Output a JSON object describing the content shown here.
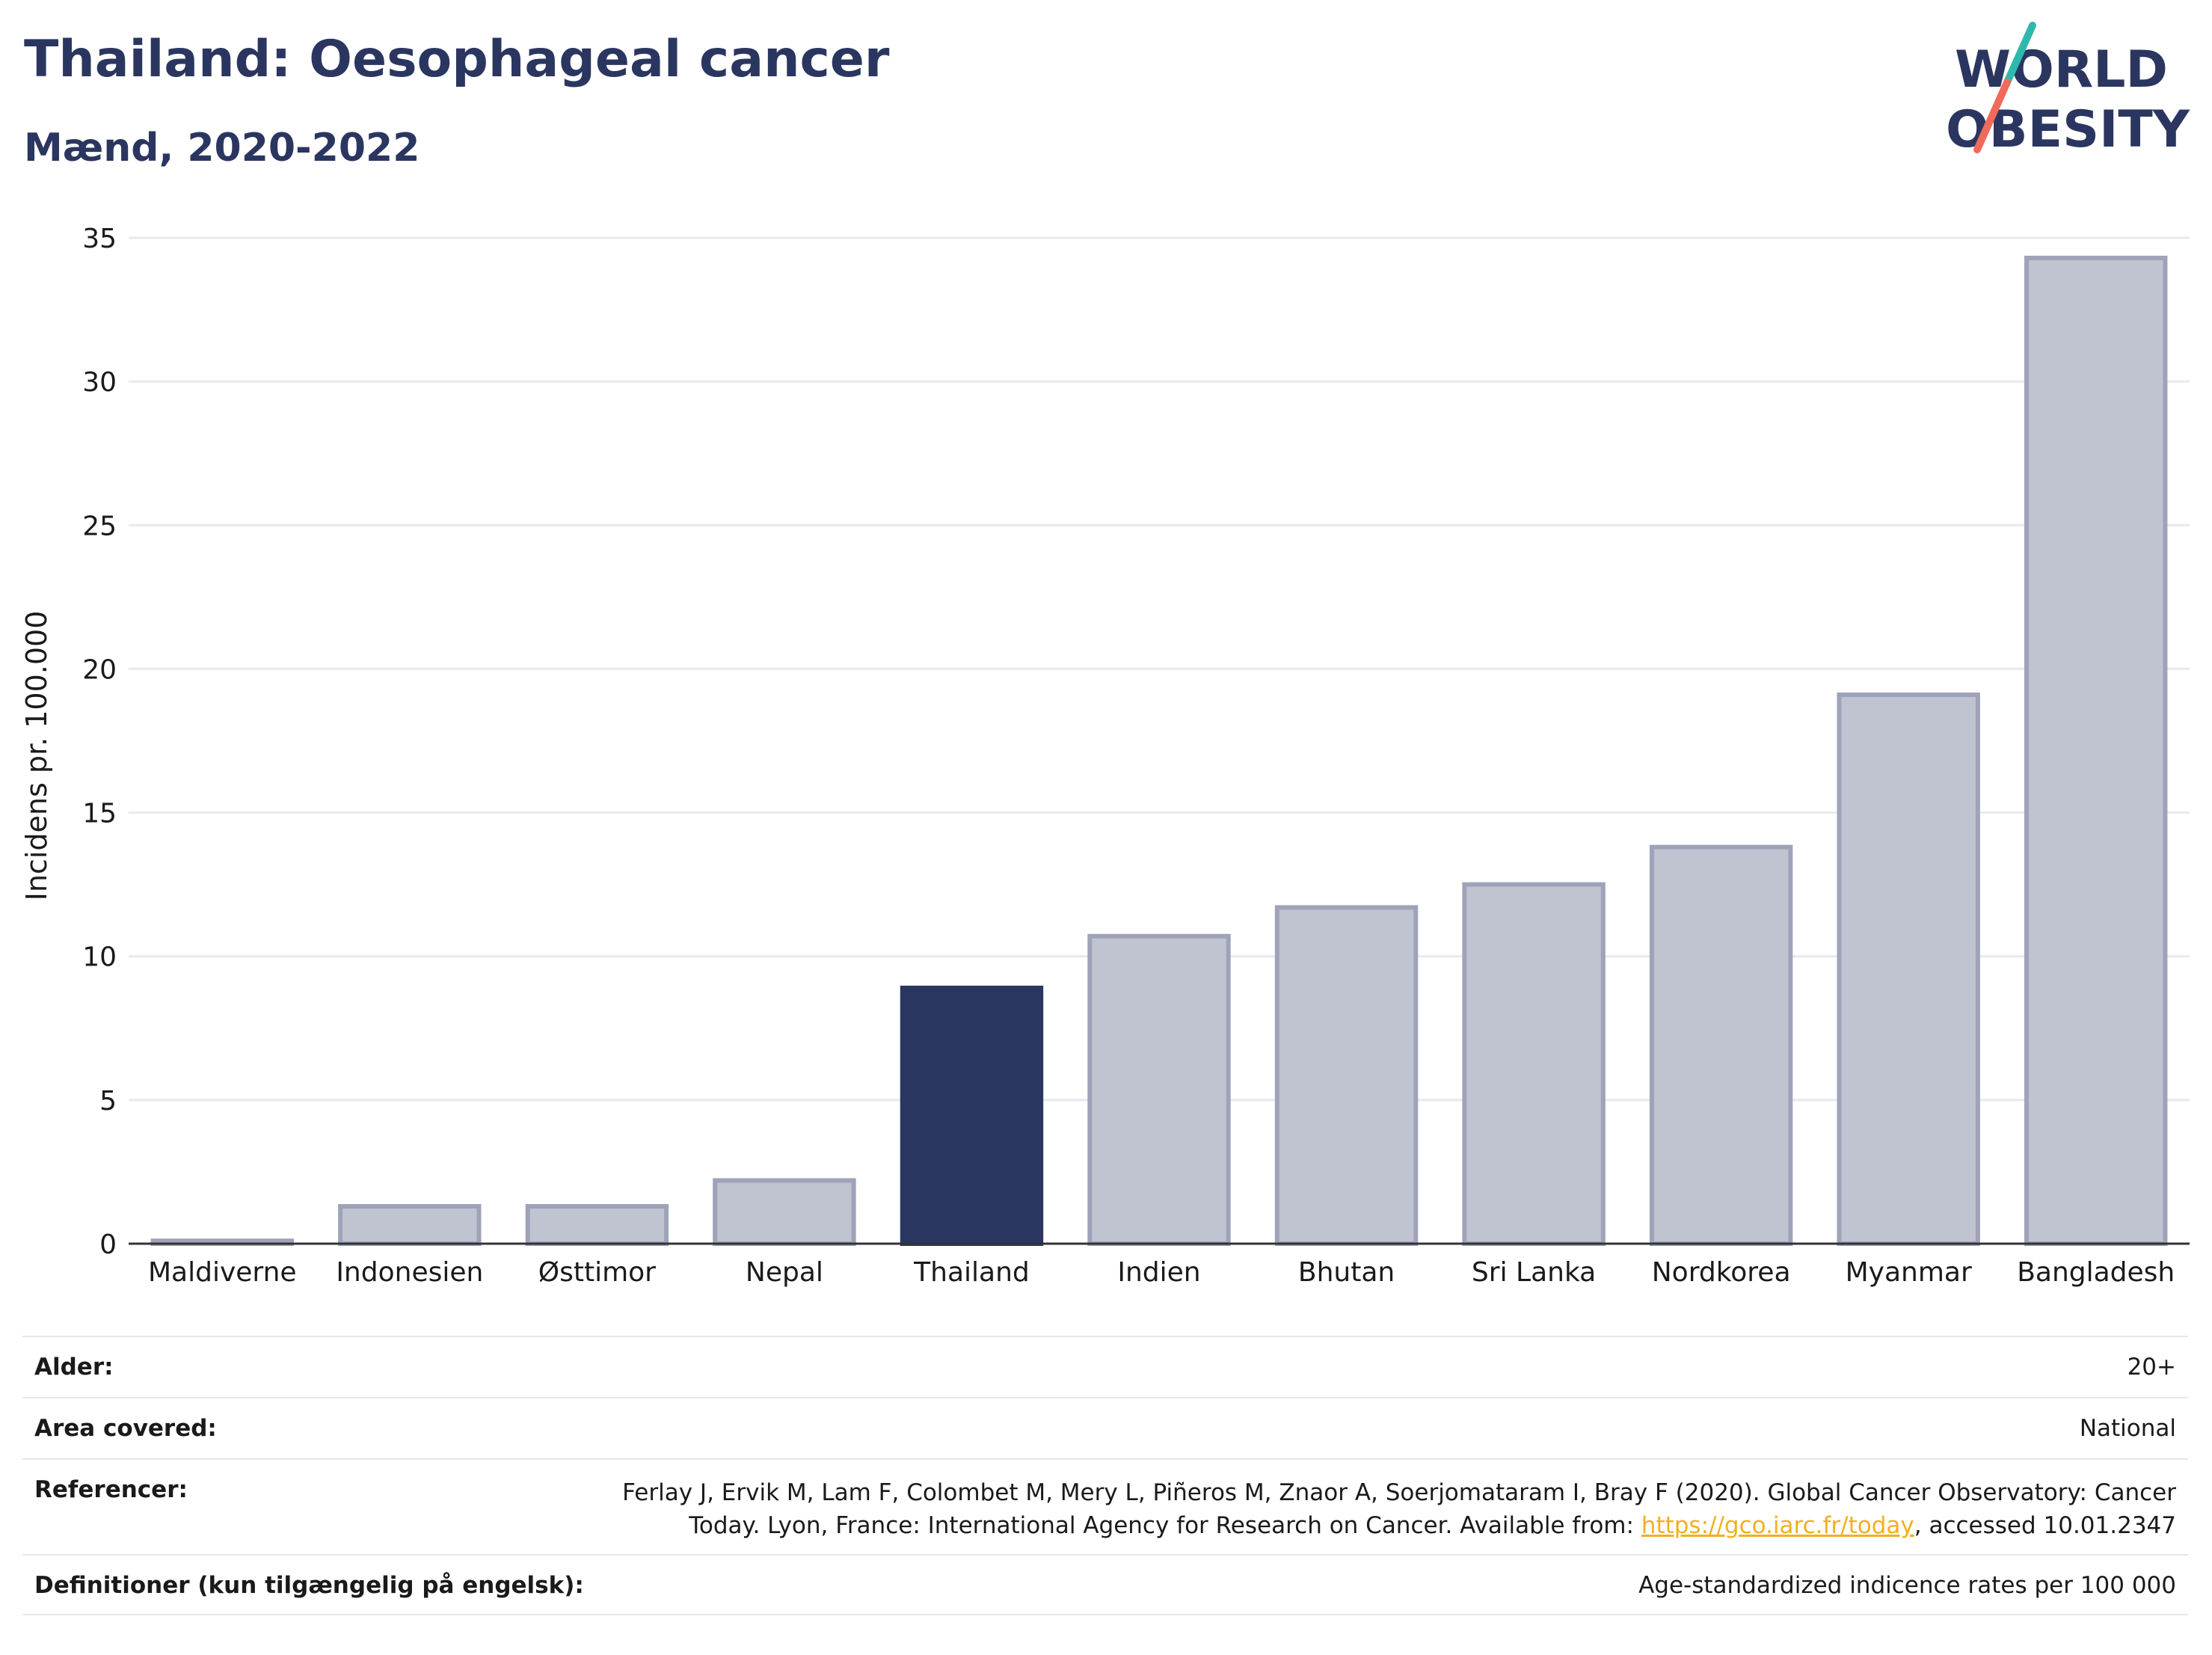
{
  "header": {
    "title": "Thailand: Oesophageal cancer",
    "subtitle": "Mænd, 2020-2022"
  },
  "logo": {
    "line1": "WORLD",
    "line2": "OBESITY",
    "colors": {
      "text": "#2b3660",
      "slash_top": "#2fb9ad",
      "slash_bottom": "#ef6a5a"
    }
  },
  "chart_data": {
    "type": "bar",
    "categories": [
      "Maldiverne",
      "Indonesien",
      "Østtimor",
      "Nepal",
      "Thailand",
      "Indien",
      "Bhutan",
      "Sri Lanka",
      "Nordkorea",
      "Myanmar",
      "Bangladesh"
    ],
    "values": [
      0.1,
      1.3,
      1.3,
      2.2,
      8.9,
      10.7,
      11.7,
      12.5,
      13.8,
      19.1,
      34.3
    ],
    "highlight": "Thailand",
    "title": "Thailand: Oesophageal cancer",
    "subtitle": "Mænd, 2020-2022",
    "xlabel": "",
    "ylabel": "Incidens pr. 100.000",
    "ylim": [
      0,
      35
    ],
    "yticks": [
      0,
      5,
      10,
      15,
      20,
      25,
      30,
      35
    ],
    "grid": true,
    "legend": "none",
    "colors": {
      "bar": "#c0c3d0",
      "bar_edge": "#9ea3b9",
      "highlight": "#2b3660"
    }
  },
  "meta": {
    "age": {
      "label": "Alder:",
      "value": "20+"
    },
    "area": {
      "label": "Area covered:",
      "value": "National"
    },
    "references": {
      "label": "Referencer:",
      "text_before": "Ferlay J, Ervik M, Lam F, Colombet M, Mery L, Piñeros M, Znaor A, Soerjomataram I, Bray F (2020). Global Cancer Observatory: Cancer Today. Lyon, France: International Agency for Research on Cancer. Available from: ",
      "link": "https://gco.iarc.fr/today",
      "text_after": ", accessed 10.01.2347"
    },
    "definitions": {
      "label": "Definitioner (kun tilgængelig på engelsk):",
      "value": "Age-standardized indicence rates per 100 000"
    }
  }
}
